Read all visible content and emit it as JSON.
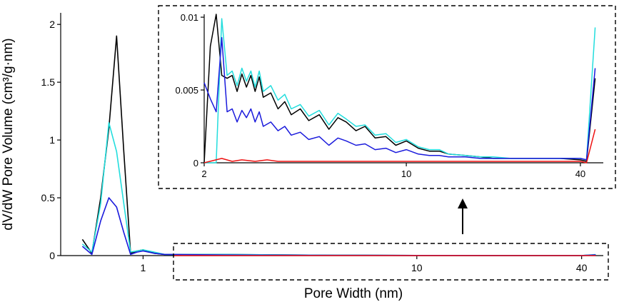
{
  "chart_data": [
    {
      "type": "line",
      "panel": "main",
      "xlabel": "Pore Width (nm)",
      "ylabel": "dV/dW Pore Volume (cm³/g·nm)",
      "x_scale": "log",
      "xlim": [
        0.5,
        48
      ],
      "ylim": [
        0,
        2.1
      ],
      "x_tick_labels": [
        "1",
        "10",
        "40"
      ],
      "x_ticks": [
        1,
        10,
        40
      ],
      "y_tick_labels": [
        "0",
        "0.5",
        "1",
        "1.5",
        "2"
      ],
      "y_ticks": [
        0,
        0.5,
        1,
        1.5,
        2
      ],
      "grid": false,
      "series": [
        {
          "color": "#000000",
          "x": [
            0.6,
            0.65,
            0.7,
            0.75,
            0.8,
            0.85,
            0.9,
            0.95,
            1.0,
            1.1,
            1.2,
            1.3,
            2,
            5,
            10,
            20,
            40,
            45
          ],
          "y": [
            0.14,
            0.02,
            0.5,
            1.1,
            1.9,
            0.9,
            0.02,
            0.04,
            0.05,
            0.02,
            0.01,
            0.01,
            0.01,
            0.003,
            0.001,
            0.0005,
            0.0005,
            0.006
          ]
        },
        {
          "color": "#22dddd",
          "x": [
            0.6,
            0.65,
            0.7,
            0.75,
            0.8,
            0.85,
            0.9,
            0.95,
            1.0,
            1.1,
            1.2,
            1.3,
            2,
            5,
            10,
            20,
            40,
            45
          ],
          "y": [
            0.1,
            0.03,
            0.45,
            1.15,
            0.9,
            0.45,
            0.03,
            0.04,
            0.05,
            0.03,
            0.01,
            0.01,
            0.01,
            0.003,
            0.001,
            0.0005,
            0.0005,
            0.009
          ]
        },
        {
          "color": "#1a1adc",
          "x": [
            0.6,
            0.65,
            0.7,
            0.75,
            0.8,
            0.85,
            0.9,
            0.95,
            1.0,
            1.1,
            1.2,
            1.3,
            2,
            5,
            10,
            20,
            40,
            45
          ],
          "y": [
            0.08,
            0.01,
            0.3,
            0.5,
            0.42,
            0.2,
            0.01,
            0.03,
            0.04,
            0.02,
            0.01,
            0.01,
            0.005,
            0.002,
            0.001,
            0.0005,
            0.0005,
            0.006
          ]
        },
        {
          "color": "#ee1111",
          "x": [
            1.3,
            2,
            5,
            10,
            20,
            40,
            45
          ],
          "y": [
            0.0,
            0.0,
            0.0,
            0.0,
            0.0,
            0.0,
            0.0
          ]
        }
      ]
    },
    {
      "type": "line",
      "panel": "inset",
      "x_scale": "log",
      "xlim": [
        2,
        48
      ],
      "ylim": [
        0,
        0.0102
      ],
      "x_tick_labels": [
        "2",
        "10",
        "40"
      ],
      "x_ticks": [
        2,
        10,
        40
      ],
      "y_tick_labels": [
        "0",
        "0.005",
        "0.01"
      ],
      "y_ticks": [
        0,
        0.005,
        0.01
      ],
      "grid": false,
      "series": [
        {
          "color": "#000000",
          "x": [
            2.0,
            2.1,
            2.2,
            2.3,
            2.4,
            2.5,
            2.6,
            2.7,
            2.8,
            2.9,
            3.0,
            3.1,
            3.2,
            3.4,
            3.6,
            3.8,
            4.0,
            4.3,
            4.6,
            5.0,
            5.4,
            5.8,
            6.2,
            6.7,
            7.2,
            7.8,
            8.5,
            9.2,
            10,
            11,
            12,
            13,
            14,
            16,
            18,
            20,
            23,
            26,
            30,
            34,
            40,
            42,
            45
          ],
          "y": [
            0.0,
            0.008,
            0.0102,
            0.006,
            0.0058,
            0.006,
            0.0049,
            0.0061,
            0.0052,
            0.006,
            0.0049,
            0.0059,
            0.0045,
            0.0048,
            0.0037,
            0.0042,
            0.0033,
            0.0037,
            0.0029,
            0.0033,
            0.0023,
            0.0031,
            0.0028,
            0.0022,
            0.0025,
            0.0017,
            0.0018,
            0.0012,
            0.0015,
            0.001,
            0.0008,
            0.0008,
            0.0006,
            0.0005,
            0.0004,
            0.0003,
            0.0003,
            0.0003,
            0.0003,
            0.0003,
            0.0002,
            0.0001,
            0.0058
          ]
        },
        {
          "color": "#22dddd",
          "x": [
            2.0,
            2.1,
            2.2,
            2.3,
            2.4,
            2.5,
            2.6,
            2.7,
            2.8,
            2.9,
            3.0,
            3.1,
            3.2,
            3.4,
            3.6,
            3.8,
            4.0,
            4.3,
            4.6,
            5.0,
            5.4,
            5.8,
            6.2,
            6.7,
            7.2,
            7.8,
            8.5,
            9.2,
            10,
            11,
            12,
            13,
            14,
            16,
            18,
            20,
            23,
            26,
            30,
            34,
            40,
            42,
            45
          ],
          "y": [
            0.0,
            0.0,
            0.0,
            0.0099,
            0.006,
            0.0063,
            0.0053,
            0.0065,
            0.0056,
            0.0063,
            0.0052,
            0.0063,
            0.0049,
            0.0053,
            0.0043,
            0.0047,
            0.0037,
            0.004,
            0.0032,
            0.0036,
            0.0026,
            0.0034,
            0.003,
            0.0025,
            0.0026,
            0.0019,
            0.002,
            0.0014,
            0.0016,
            0.0011,
            0.0009,
            0.0009,
            0.0006,
            0.0005,
            0.0004,
            0.0004,
            0.0003,
            0.0003,
            0.0003,
            0.0003,
            0.0003,
            0.0002,
            0.0093
          ]
        },
        {
          "color": "#1a1adc",
          "x": [
            2.0,
            2.1,
            2.2,
            2.3,
            2.4,
            2.5,
            2.6,
            2.7,
            2.8,
            2.9,
            3.0,
            3.1,
            3.2,
            3.4,
            3.6,
            3.8,
            4.0,
            4.3,
            4.6,
            5.0,
            5.4,
            5.8,
            6.2,
            6.7,
            7.2,
            7.8,
            8.5,
            9.2,
            10,
            11,
            12,
            13,
            14,
            16,
            18,
            20,
            23,
            26,
            30,
            34,
            40,
            42,
            45
          ],
          "y": [
            0.0055,
            0.0044,
            0.0035,
            0.0086,
            0.0035,
            0.0037,
            0.0028,
            0.0036,
            0.0031,
            0.0037,
            0.0028,
            0.0035,
            0.0025,
            0.0028,
            0.0022,
            0.0025,
            0.0019,
            0.0021,
            0.0016,
            0.0018,
            0.0012,
            0.0017,
            0.0015,
            0.0012,
            0.0013,
            0.0009,
            0.001,
            0.0007,
            0.0009,
            0.0006,
            0.0005,
            0.0005,
            0.0004,
            0.0004,
            0.0003,
            0.0003,
            0.0003,
            0.0003,
            0.0003,
            0.0003,
            0.0003,
            0.0002,
            0.0065
          ]
        },
        {
          "color": "#ee1111",
          "x": [
            2.0,
            2.3,
            2.5,
            2.7,
            3.0,
            3.3,
            3.6,
            4.0,
            4.5,
            5.0,
            6,
            7,
            8,
            10,
            12,
            15,
            20,
            25,
            30,
            35,
            40,
            42,
            45
          ],
          "y": [
            0.0,
            0.0003,
            0.0001,
            0.0002,
            0.0001,
            0.0002,
            0.0001,
            0.0001,
            0.0001,
            0.0001,
            0.0001,
            0.0001,
            0.0001,
            0.0001,
            0.0001,
            0.0001,
            0.0001,
            0.0001,
            0.0001,
            0.0001,
            0.0001,
            0.0,
            0.0023
          ]
        }
      ]
    }
  ]
}
